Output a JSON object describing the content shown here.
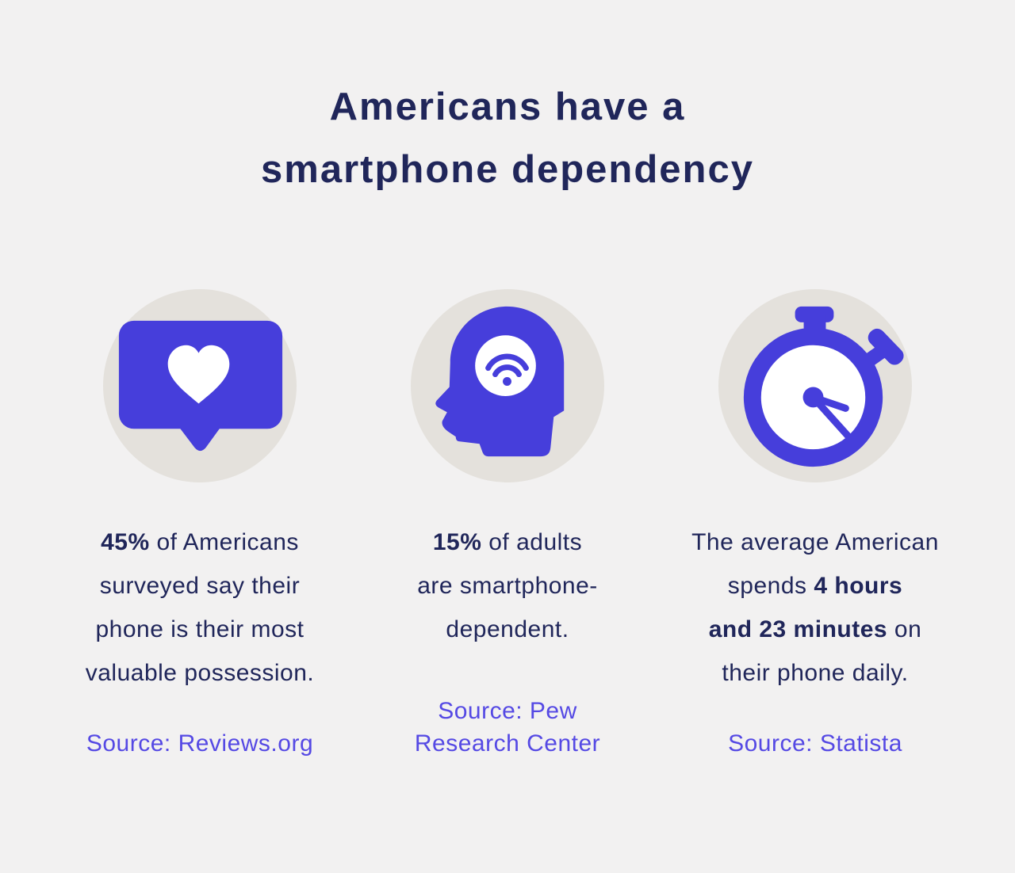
{
  "title": {
    "lines": [
      "Americans have a",
      "smartphone dependency"
    ]
  },
  "colors": {
    "background": "#F2F1F1",
    "circle_bg": "#E4E1DC",
    "accent_purple": "#463EDB",
    "heading_navy": "#20265A",
    "source_link": "#5549E4"
  },
  "columns": [
    {
      "icon": "heart-like-bubble-icon",
      "stat_lines": [
        [
          {
            "text": "45%",
            "bold": true
          },
          {
            "text": " of Americans"
          }
        ],
        [
          {
            "text": "surveyed say their"
          }
        ],
        [
          {
            "text": "phone is their most"
          }
        ],
        [
          {
            "text": "valuable possession."
          }
        ]
      ],
      "source_lines": [
        [
          {
            "text": "Source: Reviews.org"
          }
        ]
      ]
    },
    {
      "icon": "head-wifi-icon",
      "stat_lines": [
        [
          {
            "text": "15%",
            "bold": true
          },
          {
            "text": " of adults"
          }
        ],
        [
          {
            "text": "are smartphone-"
          }
        ],
        [
          {
            "text": "dependent."
          }
        ]
      ],
      "source_lines": [
        [
          {
            "text": "Source: Pew"
          }
        ],
        [
          {
            "text": "Research Center"
          }
        ]
      ]
    },
    {
      "icon": "stopwatch-icon",
      "stat_lines": [
        [
          {
            "text": "The average American"
          }
        ],
        [
          {
            "text": "spends "
          },
          {
            "text": "4 hours",
            "bold": true
          }
        ],
        [
          {
            "text": "and 23 minutes",
            "bold": true
          },
          {
            "text": " on"
          }
        ],
        [
          {
            "text": "their phone daily."
          }
        ]
      ],
      "source_lines": [
        [
          {
            "text": "Source: Statista"
          }
        ]
      ]
    }
  ]
}
